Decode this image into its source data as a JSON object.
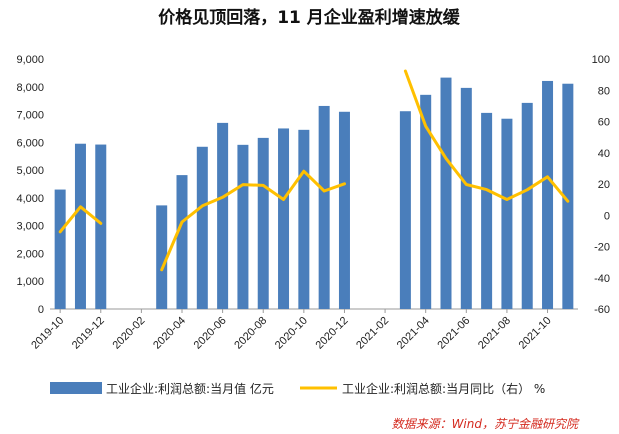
{
  "chart_data": {
    "type": "bar+line",
    "title": "价格见顶回落，11 月企业盈利增速放缓",
    "categories": [
      "2019-10",
      "2019-11",
      "2019-12",
      "2020-01",
      "2020-02",
      "2020-03",
      "2020-04",
      "2020-05",
      "2020-06",
      "2020-07",
      "2020-08",
      "2020-09",
      "2020-10",
      "2020-11",
      "2020-12",
      "2021-01",
      "2021-02",
      "2021-03",
      "2021-04",
      "2021-05",
      "2021-06",
      "2021-07",
      "2021-08",
      "2021-09",
      "2021-10",
      "2021-11"
    ],
    "x_tick_labels": [
      "2019-10",
      "2019-12",
      "2020-02",
      "2020-04",
      "2020-06",
      "2020-08",
      "2020-10",
      "2020-12",
      "2021-02",
      "2021-04",
      "2021-06",
      "2021-08",
      "2021-10"
    ],
    "series": [
      {
        "name": "工业企业:利润总额:当月值 亿元",
        "type": "bar",
        "axis": "left",
        "color": "#4a7ebb",
        "values": [
          4300,
          5950,
          5920,
          null,
          null,
          3730,
          4820,
          5840,
          6700,
          5910,
          6160,
          6500,
          6450,
          7310,
          7100,
          null,
          null,
          7120,
          7710,
          8330,
          7960,
          7060,
          6850,
          7420,
          8210,
          8110
        ]
      },
      {
        "name": "工业企业:利润总额:当月同比（右） %",
        "type": "line",
        "axis": "right",
        "color": "#ffc000",
        "values": [
          -10.6,
          5.4,
          -5.2,
          null,
          null,
          -34.9,
          -4.3,
          6.0,
          11.5,
          19.6,
          19.1,
          10.1,
          28.2,
          15.5,
          20.1,
          null,
          null,
          92.3,
          57.0,
          36.4,
          19.7,
          16.4,
          10.1,
          16.3,
          24.6,
          9.0
        ]
      }
    ],
    "y_left": {
      "min": 0,
      "max": 9000,
      "step": 1000,
      "tick_labels": [
        "0",
        "1,000",
        "2,000",
        "3,000",
        "4,000",
        "5,000",
        "6,000",
        "7,000",
        "8,000",
        "9,000"
      ]
    },
    "y_right": {
      "min": -60,
      "max": 100,
      "step": 20,
      "tick_labels": [
        "-60",
        "-40",
        "-20",
        "0",
        "20",
        "40",
        "60",
        "80",
        "100"
      ]
    },
    "grid": false,
    "legend_placement": "bottom",
    "source": "数据来源：Wind，苏宁金融研究院"
  }
}
